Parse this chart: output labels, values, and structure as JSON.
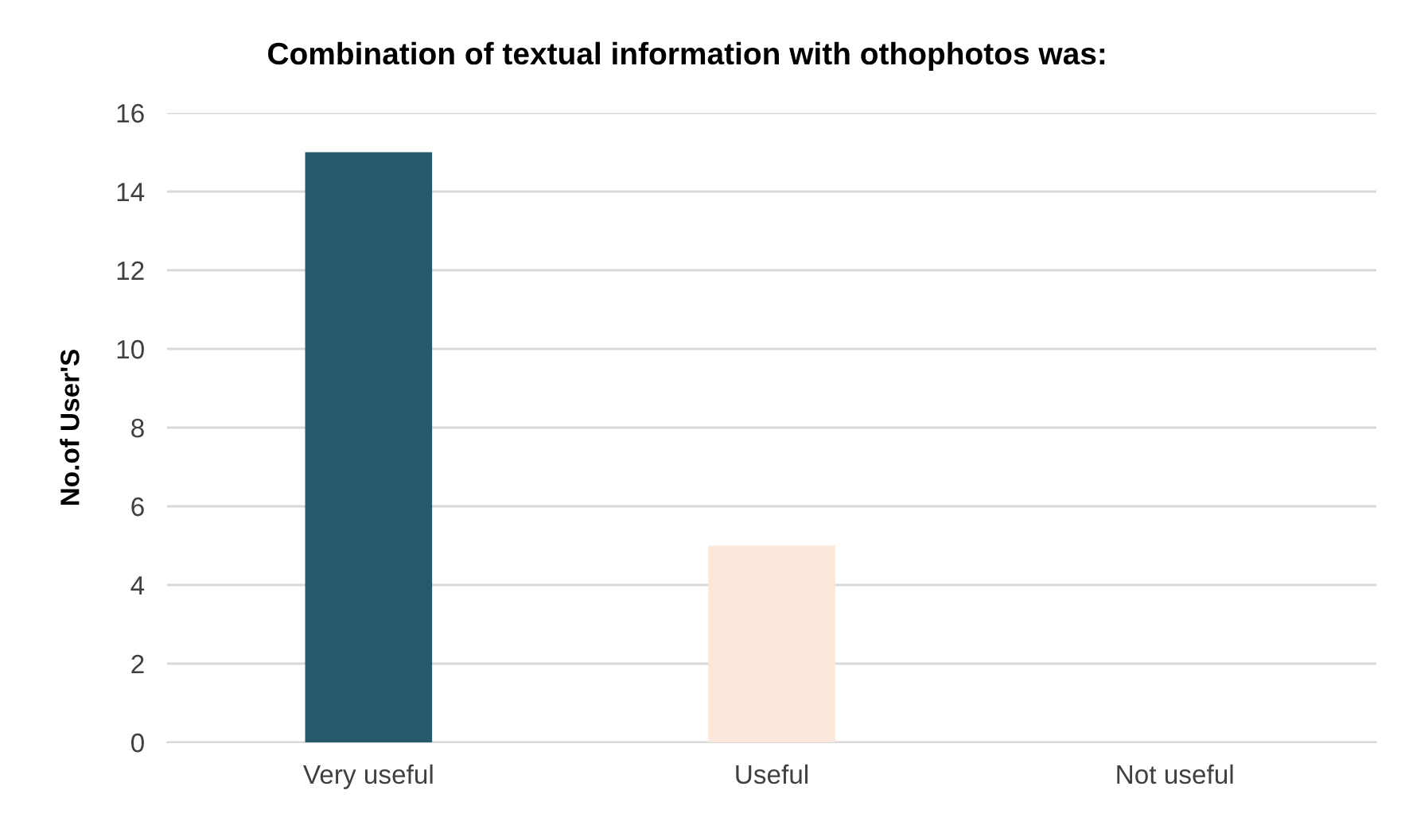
{
  "chart_data": {
    "type": "bar",
    "title": "Combination of textual information with othophotos was:",
    "ylabel": "No.of User'S",
    "categories": [
      "Very useful",
      "Useful",
      "Not useful"
    ],
    "values": [
      15,
      5,
      0
    ],
    "colors": [
      "#245a69",
      "#fce8da",
      "#a0a0a0"
    ],
    "ylim": [
      0,
      16
    ],
    "yticks": [
      0,
      2,
      4,
      6,
      8,
      10,
      12,
      14,
      16
    ],
    "grid": "y"
  }
}
